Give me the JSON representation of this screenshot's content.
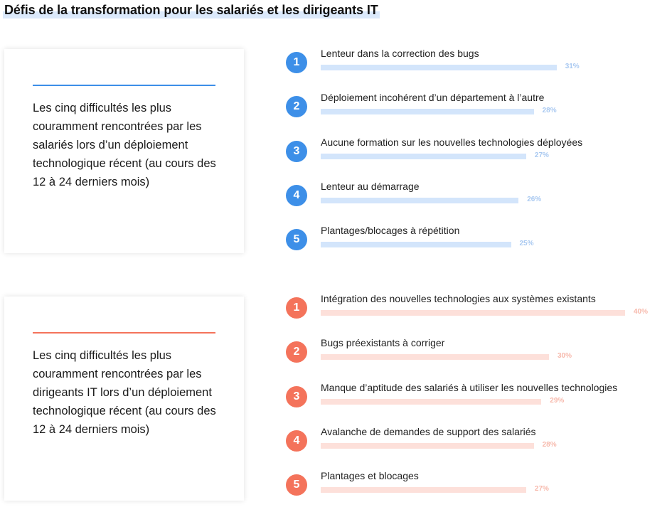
{
  "title": "Défis de la transformation pour les salariés et les dirigeants IT",
  "colors": {
    "employees_accent": "#3d8fe8",
    "employees_bar": "#d3e5fb",
    "employees_pct": "#a9c9f1",
    "leaders_accent": "#f4735b",
    "leaders_bar": "#fde0da",
    "leaders_pct": "#f7b9ac"
  },
  "panels": [
    {
      "description": "Les cinq difficultés les plus couramment rencontrées par les salariés lors d’un déploiement technologique récent (au cours des 12 à 24 derniers mois)"
    },
    {
      "description": "Les cinq difficultés les plus couramment rencontrées par les dirigeants IT lors d’un déploiement technologique récent (au cours des 12 à 24 derniers mois)"
    }
  ],
  "chart_data": [
    {
      "type": "bar",
      "orientation": "horizontal",
      "ranks": [
        "1",
        "2",
        "3",
        "4",
        "5"
      ],
      "categories": [
        "Lenteur dans la correction des bugs",
        "Déploiement incohérent d’un département à l’autre",
        "Aucune formation sur les nouvelles technologies déployées",
        "Lenteur au démarrage",
        "Plantages/blocages à répétition"
      ],
      "values": [
        31,
        28,
        27,
        26,
        25
      ],
      "value_labels": [
        "31%",
        "28%",
        "27%",
        "26%",
        "25%"
      ]
    },
    {
      "type": "bar",
      "orientation": "horizontal",
      "ranks": [
        "1",
        "2",
        "3",
        "4",
        "5"
      ],
      "categories": [
        "Intégration des nouvelles technologies aux systèmes existants",
        "Bugs préexistants à corriger",
        "Manque d’aptitude des salariés à utiliser les nouvelles technologies",
        "Avalanche de demandes de support des salariés",
        "Plantages et blocages"
      ],
      "values": [
        40,
        30,
        29,
        28,
        27
      ],
      "value_labels": [
        "40%",
        "30%",
        "29%",
        "28%",
        "27%"
      ]
    }
  ]
}
